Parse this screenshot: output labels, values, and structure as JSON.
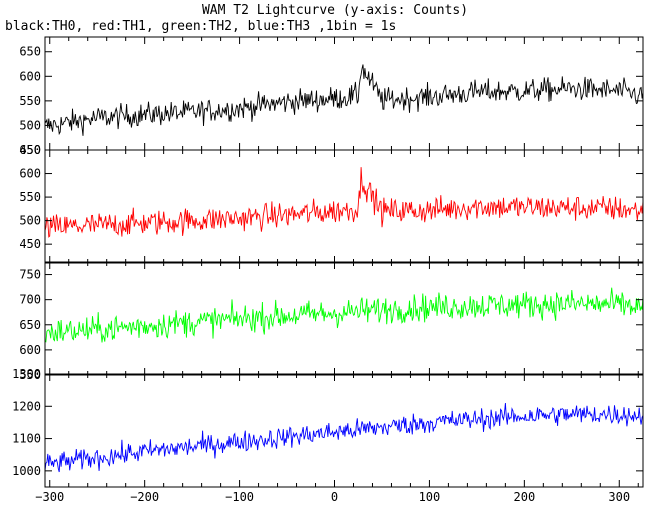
{
  "figure": {
    "title": "WAM T2 Lightcurve (y-axis: Counts)",
    "subtitle": "black:TH0, red:TH1, green:TH2, blue:TH3 ,1bin = 1s"
  },
  "chart_data": {
    "type": "line",
    "xlim": [
      -305,
      325
    ],
    "x_ticks": [
      -300,
      -200,
      -100,
      0,
      100,
      200,
      300
    ],
    "x_tick_labels": [
      "−300",
      "−200",
      "−100",
      "0",
      "100",
      "200",
      "300"
    ],
    "panels": [
      {
        "name": "TH0",
        "color": "#000000",
        "ylim": [
          450,
          680
        ],
        "y_ticks": [
          450,
          500,
          550,
          600,
          650
        ],
        "series_profile": {
          "x": [
            -305,
            -250,
            -200,
            -150,
            -100,
            -50,
            0,
            25,
            28,
            50,
            100,
            150,
            200,
            250,
            300,
            325
          ],
          "mean": [
            498,
            515,
            522,
            527,
            535,
            548,
            555,
            560,
            620,
            552,
            558,
            568,
            570,
            575,
            570,
            560
          ],
          "noise": 22
        }
      },
      {
        "name": "TH1",
        "color": "#ff0000",
        "ylim": [
          410,
          650
        ],
        "y_ticks": [
          450,
          500,
          550,
          600,
          650
        ],
        "series_profile": {
          "x": [
            -305,
            -250,
            -200,
            -150,
            -100,
            -50,
            0,
            25,
            28,
            50,
            100,
            150,
            200,
            250,
            300,
            325
          ],
          "mean": [
            485,
            490,
            495,
            500,
            505,
            512,
            520,
            525,
            590,
            520,
            522,
            530,
            528,
            527,
            525,
            520
          ],
          "noise": 25
        }
      },
      {
        "name": "TH2",
        "color": "#00ff00",
        "ylim": [
          550,
          775
        ],
        "y_ticks": [
          550,
          600,
          650,
          700,
          750
        ],
        "series_profile": {
          "x": [
            -305,
            -250,
            -200,
            -150,
            -100,
            -50,
            0,
            50,
            100,
            150,
            200,
            250,
            300,
            325
          ],
          "mean": [
            635,
            640,
            648,
            655,
            662,
            668,
            673,
            680,
            685,
            688,
            690,
            692,
            690,
            685
          ],
          "noise": 25
        }
      },
      {
        "name": "TH3",
        "color": "#0000ff",
        "ylim": [
          950,
          1300
        ],
        "y_ticks": [
          1000,
          1100,
          1200,
          1300
        ],
        "series_profile": {
          "x": [
            -305,
            -250,
            -200,
            -150,
            -100,
            -50,
            0,
            50,
            100,
            150,
            200,
            250,
            300,
            325
          ],
          "mean": [
            1020,
            1040,
            1060,
            1075,
            1090,
            1105,
            1120,
            1135,
            1150,
            1160,
            1170,
            1175,
            1175,
            1170
          ],
          "noise": 30
        }
      }
    ]
  }
}
